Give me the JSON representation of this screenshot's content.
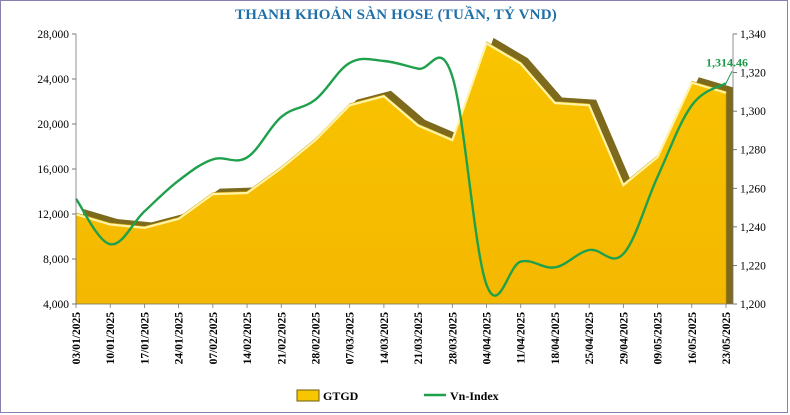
{
  "chart_data": {
    "type": "area",
    "title": "THANH KHOẢN SÀN HOSE (TUẦN, TỶ VND)",
    "categories": [
      "03/01/2025",
      "10/01/2025",
      "17/01/2025",
      "24/01/2025",
      "07/02/2025",
      "14/02/2025",
      "21/02/2025",
      "28/02/2025",
      "07/03/2025",
      "14/03/2025",
      "21/03/2025",
      "28/03/2025",
      "04/04/2025",
      "11/04/2025",
      "18/04/2025",
      "25/04/2025",
      "29/04/2025",
      "09/05/2025",
      "16/05/2025",
      "23/05/2025"
    ],
    "series": [
      {
        "name": "GTGD",
        "type": "area",
        "axis": "left",
        "color": "#f7c600",
        "values": [
          12100,
          11200,
          10900,
          11700,
          13900,
          14000,
          16200,
          18700,
          21800,
          22600,
          20000,
          18700,
          27300,
          25500,
          22000,
          21800,
          14700,
          17200,
          23800,
          22900
        ]
      },
      {
        "name": "Vn-Index",
        "type": "line",
        "axis": "right",
        "color": "#1fa04c",
        "values": [
          1254.5,
          1231,
          1248,
          1264,
          1275,
          1276,
          1297,
          1306,
          1325,
          1326,
          1322,
          1318,
          1210,
          1222,
          1219,
          1228,
          1226,
          1266,
          1303,
          1314.46
        ]
      }
    ],
    "y_left": {
      "min": 4000,
      "max": 28000,
      "ticks": [
        "4,000",
        "8,000",
        "12,000",
        "16,000",
        "20,000",
        "24,000",
        "28,000"
      ]
    },
    "y_right": {
      "min": 1200,
      "max": 1340,
      "ticks": [
        "1,200",
        "1,220",
        "1,240",
        "1,260",
        "1,280",
        "1,300",
        "1,320",
        "1,340"
      ]
    },
    "annotation": "1,314.46",
    "legend": {
      "placement": "bottom",
      "items": [
        "GTGD",
        "Vn-Index"
      ]
    },
    "grid": false
  }
}
